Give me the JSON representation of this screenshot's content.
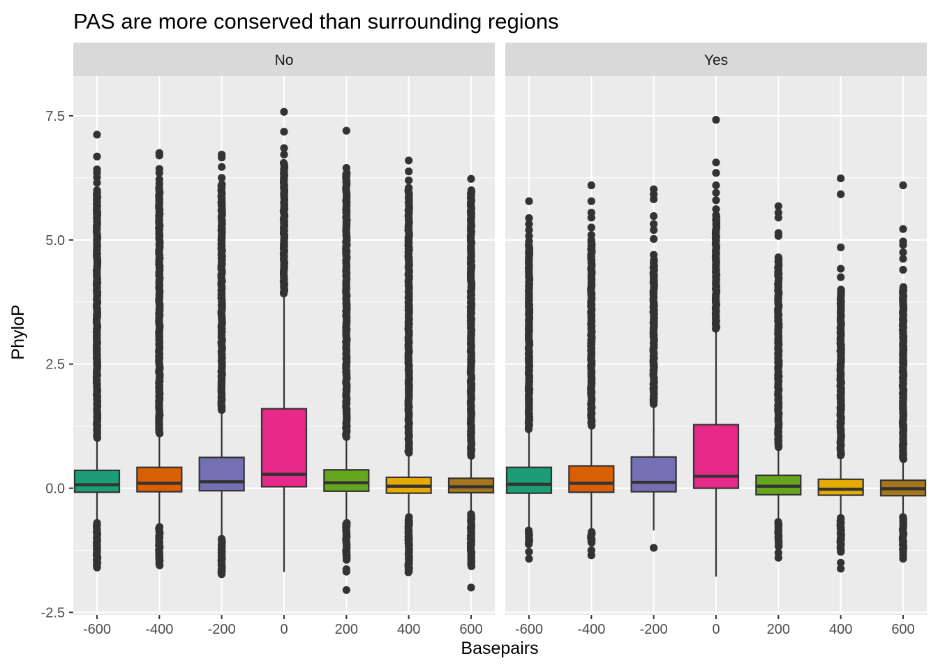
{
  "chart_data": {
    "type": "boxplot",
    "title": "PAS are more conserved than surrounding regions",
    "xlabel": "Basepairs",
    "ylabel": "PhyloP",
    "facet_labels": [
      "No",
      "Yes"
    ],
    "categories": [
      "-600",
      "-400",
      "-200",
      "0",
      "200",
      "400",
      "600"
    ],
    "x_values": [
      -600,
      -400,
      -200,
      0,
      200,
      400,
      600
    ],
    "ylim": [
      -2.55,
      8.3
    ],
    "y_ticks": [
      -2.5,
      0.0,
      2.5,
      5.0,
      7.5
    ],
    "y_tick_labels": [
      "-2.5",
      "0.0",
      "2.5",
      "5.0",
      "7.5"
    ],
    "grid": true,
    "legend": "none",
    "colors": {
      "-600": "#1B9E77",
      "-400": "#D95F02",
      "-200": "#7570B3",
      "0": "#E7298A",
      "200": "#66A61E",
      "400": "#E6AB02",
      "600": "#A6761D"
    },
    "panels": [
      {
        "facet": "No",
        "boxes": [
          {
            "x": -600,
            "q1": -0.08,
            "median": 0.07,
            "q3": 0.36,
            "whisker_low": -0.7,
            "whisker_high": 0.96,
            "outliers_dense": [
              [
                -1.6,
                -0.7
              ],
              [
                1.0,
                5.96
              ]
            ],
            "outliers": [
              6.0,
              6.15,
              6.26,
              6.35,
              6.42,
              6.68,
              7.12
            ]
          },
          {
            "x": -400,
            "q1": -0.07,
            "median": 0.1,
            "q3": 0.42,
            "whisker_low": -0.78,
            "whisker_high": 1.08,
            "outliers_dense": [
              [
                -1.56,
                -0.78
              ],
              [
                1.1,
                6.05
              ]
            ],
            "outliers": [
              6.13,
              6.22,
              6.35,
              6.43,
              6.7,
              6.75
            ]
          },
          {
            "x": -200,
            "q1": -0.05,
            "median": 0.13,
            "q3": 0.62,
            "whisker_low": -1.02,
            "whisker_high": 1.55,
            "outliers_dense": [
              [
                -1.74,
                -1.02
              ],
              [
                1.57,
                6.12
              ]
            ],
            "outliers": [
              6.25,
              6.47,
              6.66,
              6.72
            ]
          },
          {
            "x": 0,
            "q1": 0.03,
            "median": 0.28,
            "q3": 1.6,
            "whisker_low": -1.69,
            "whisker_high": 3.9,
            "outliers_dense": [
              [
                3.92,
                6.55
              ]
            ],
            "outliers": [
              6.72,
              6.85,
              7.18,
              7.58
            ]
          },
          {
            "x": 200,
            "q1": -0.06,
            "median": 0.11,
            "q3": 0.37,
            "whisker_low": -0.7,
            "whisker_high": 1.0,
            "outliers_dense": [
              [
                -1.46,
                -0.7
              ],
              [
                1.02,
                6.35
              ]
            ],
            "outliers": [
              -1.63,
              -1.68,
              -2.05,
              6.45,
              7.2
            ]
          },
          {
            "x": 400,
            "q1": -0.1,
            "median": 0.04,
            "q3": 0.22,
            "whisker_low": -0.55,
            "whisker_high": 0.68,
            "outliers_dense": [
              [
                -1.7,
                -0.58
              ],
              [
                0.7,
                6.0
              ]
            ],
            "outliers": [
              6.05,
              6.2,
              6.38,
              6.6
            ]
          },
          {
            "x": 600,
            "q1": -0.09,
            "median": 0.03,
            "q3": 0.2,
            "whisker_low": -0.5,
            "whisker_high": 0.62,
            "outliers_dense": [
              [
                -1.6,
                -0.52
              ],
              [
                0.64,
                6.0
              ]
            ],
            "outliers": [
              6.23,
              -2.0
            ]
          }
        ]
      },
      {
        "facet": "Yes",
        "boxes": [
          {
            "x": -600,
            "q1": -0.1,
            "median": 0.08,
            "q3": 0.42,
            "whisker_low": -0.85,
            "whisker_high": 1.15,
            "outliers_dense": [
              [
                -1.15,
                -0.85
              ],
              [
                1.18,
                4.9
              ]
            ],
            "outliers": [
              -1.28,
              -1.42,
              4.97,
              5.08,
              5.2,
              5.32,
              5.44,
              5.78
            ]
          },
          {
            "x": -400,
            "q1": -0.08,
            "median": 0.1,
            "q3": 0.45,
            "whisker_low": -0.88,
            "whisker_high": 1.22,
            "outliers_dense": [
              [
                -1.12,
                -0.88
              ],
              [
                1.25,
                5.0
              ]
            ],
            "outliers": [
              -1.25,
              -1.35,
              5.1,
              5.25,
              5.45,
              5.55,
              5.78,
              6.1
            ]
          },
          {
            "x": -200,
            "q1": -0.07,
            "median": 0.12,
            "q3": 0.63,
            "whisker_low": -0.85,
            "whisker_high": 1.65,
            "outliers_dense": [
              [
                1.68,
                4.6
              ]
            ],
            "outliers": [
              -1.2,
              4.7,
              5.02,
              5.2,
              5.32,
              5.48,
              5.82,
              5.92,
              6.02
            ]
          },
          {
            "x": 0,
            "q1": 0.0,
            "median": 0.24,
            "q3": 1.28,
            "whisker_low": -1.78,
            "whisker_high": 3.18,
            "outliers_dense": [
              [
                3.2,
                5.5
              ]
            ],
            "outliers": [
              5.62,
              5.8,
              5.95,
              6.1,
              6.35,
              6.56,
              7.42
            ]
          },
          {
            "x": 200,
            "q1": -0.13,
            "median": 0.04,
            "q3": 0.26,
            "whisker_low": -0.65,
            "whisker_high": 0.8,
            "outliers_dense": [
              [
                -1.2,
                -0.68
              ],
              [
                0.82,
                4.6
              ]
            ],
            "outliers": [
              -1.3,
              -1.4,
              4.65,
              5.08,
              5.14,
              5.45,
              5.55,
              5.68
            ]
          },
          {
            "x": 400,
            "q1": -0.14,
            "median": -0.02,
            "q3": 0.18,
            "whisker_low": -0.58,
            "whisker_high": 0.62,
            "outliers_dense": [
              [
                -1.3,
                -0.6
              ],
              [
                0.64,
                4.0
              ]
            ],
            "outliers": [
              -1.5,
              -1.62,
              4.25,
              4.42,
              4.85,
              5.92,
              6.24
            ]
          },
          {
            "x": 600,
            "q1": -0.15,
            "median": -0.01,
            "q3": 0.16,
            "whisker_low": -0.55,
            "whisker_high": 0.56,
            "outliers_dense": [
              [
                -1.3,
                -0.58
              ],
              [
                0.58,
                4.05
              ]
            ],
            "outliers": [
              -1.35,
              -1.42,
              4.4,
              4.62,
              4.75,
              4.9,
              4.97,
              5.22,
              6.1
            ]
          }
        ]
      }
    ]
  }
}
